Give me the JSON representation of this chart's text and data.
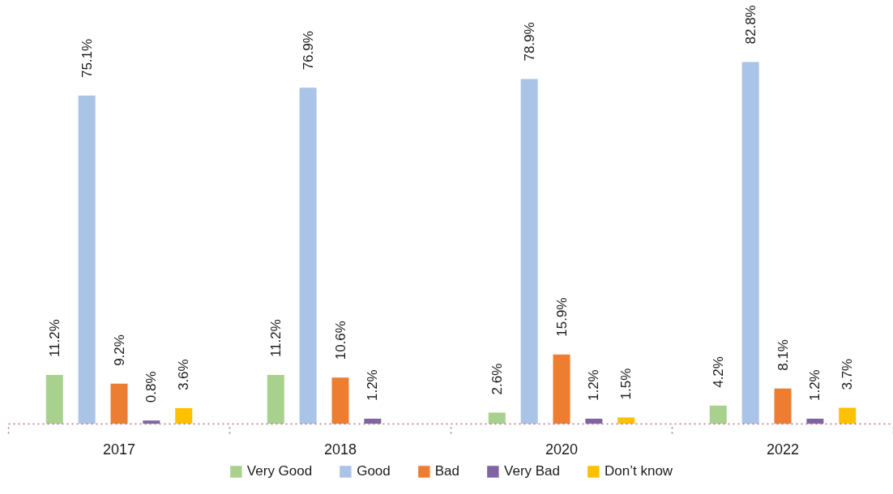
{
  "chart_data": {
    "type": "bar",
    "categories": [
      "2017",
      "2018",
      "2020",
      "2022"
    ],
    "series": [
      {
        "name": "Very Good",
        "color": "#a9d18e",
        "values": [
          11.2,
          11.2,
          2.6,
          4.2
        ],
        "value_labels": [
          "11.2%",
          "11.2%",
          "2.6%",
          "4.2%"
        ]
      },
      {
        "name": "Good",
        "color": "#aac4e8",
        "values": [
          75.1,
          76.9,
          78.9,
          82.8
        ],
        "value_labels": [
          "75.1%",
          "76.9%",
          "78.9%",
          "82.8%"
        ]
      },
      {
        "name": "Bad",
        "color": "#ed7d31",
        "values": [
          9.2,
          10.6,
          15.9,
          8.1
        ],
        "value_labels": [
          "9.2%",
          "10.6%",
          "15.9%",
          "8.1%"
        ]
      },
      {
        "name": "Very Bad",
        "color": "#8064a2",
        "values": [
          0.8,
          1.2,
          1.2,
          1.2
        ],
        "value_labels": [
          "0.8%",
          "1.2%",
          "1.2%",
          "1.2%"
        ]
      },
      {
        "name": "Don’t know",
        "color": "#ffc000",
        "values": [
          3.6,
          null,
          1.5,
          3.7
        ],
        "value_labels": [
          "3.6%",
          null,
          "1.5%",
          "3.7%"
        ]
      }
    ],
    "legend": "bottom"
  }
}
